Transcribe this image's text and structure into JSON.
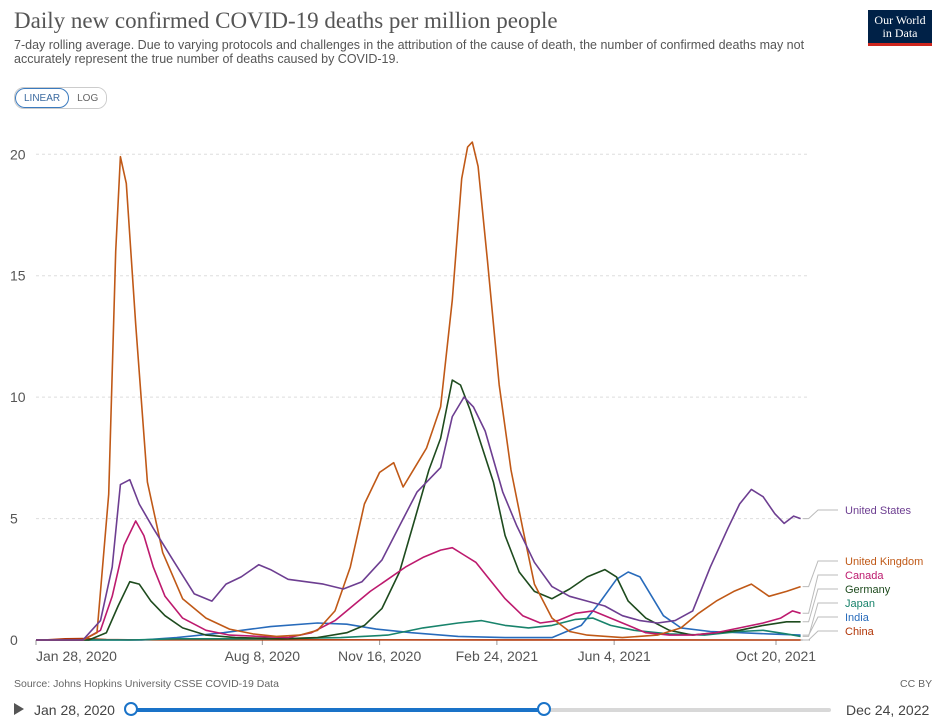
{
  "header": {
    "title": "Daily new confirmed COVID-19 deaths per million people",
    "subtitle": "7-day rolling average. Due to varying protocols and challenges in the attribution of the cause of death, the number of confirmed deaths may not accurately represent the true number of deaths caused by COVID-19.",
    "logo_line1": "Our World",
    "logo_line2": "in Data"
  },
  "toggle": {
    "linear_label": "LINEAR",
    "log_label": "LOG",
    "selected": "LINEAR"
  },
  "footer": {
    "source": "Source: Johns Hopkins University CSSE COVID-19 Data",
    "license": "CC BY"
  },
  "timeline": {
    "start_label": "Jan 28, 2020",
    "end_label": "Dec 24, 2022",
    "selection_end_fraction": 0.59
  },
  "chart_data": {
    "type": "line",
    "ylim": [
      0,
      21
    ],
    "yticks": [
      0,
      5,
      10,
      15,
      20
    ],
    "xlim": [
      0,
      660
    ],
    "xticks": [
      {
        "day": 0,
        "label": "Jan 28, 2020"
      },
      {
        "day": 193,
        "label": "Aug 8, 2020"
      },
      {
        "day": 293,
        "label": "Nov 16, 2020"
      },
      {
        "day": 393,
        "label": "Feb 24, 2021"
      },
      {
        "day": 493,
        "label": "Jun 4, 2021"
      },
      {
        "day": 631,
        "label": "Oct 20, 2021"
      }
    ],
    "grid": true,
    "legend": "right, labels at line ends",
    "series": [
      {
        "name": "United States",
        "color": "#6d3e91",
        "points": [
          [
            0,
            0
          ],
          [
            40,
            0
          ],
          [
            55,
            0.8
          ],
          [
            65,
            3
          ],
          [
            72,
            6.4
          ],
          [
            80,
            6.6
          ],
          [
            88,
            5.6
          ],
          [
            100,
            4.6
          ],
          [
            118,
            3.2
          ],
          [
            135,
            1.9
          ],
          [
            150,
            1.6
          ],
          [
            162,
            2.3
          ],
          [
            175,
            2.6
          ],
          [
            190,
            3.1
          ],
          [
            200,
            2.9
          ],
          [
            215,
            2.5
          ],
          [
            230,
            2.4
          ],
          [
            245,
            2.3
          ],
          [
            262,
            2.1
          ],
          [
            278,
            2.4
          ],
          [
            295,
            3.3
          ],
          [
            310,
            4.7
          ],
          [
            325,
            6.1
          ],
          [
            345,
            7.1
          ],
          [
            355,
            9.2
          ],
          [
            365,
            10
          ],
          [
            373,
            9.6
          ],
          [
            383,
            8.6
          ],
          [
            398,
            6.1
          ],
          [
            410,
            4.7
          ],
          [
            425,
            3.2
          ],
          [
            440,
            2.2
          ],
          [
            455,
            1.8
          ],
          [
            470,
            1.6
          ],
          [
            485,
            1.4
          ],
          [
            500,
            1.0
          ],
          [
            515,
            0.8
          ],
          [
            530,
            0.7
          ],
          [
            545,
            0.8
          ],
          [
            560,
            1.2
          ],
          [
            575,
            3.0
          ],
          [
            590,
            4.6
          ],
          [
            600,
            5.6
          ],
          [
            610,
            6.2
          ],
          [
            620,
            5.9
          ],
          [
            630,
            5.2
          ],
          [
            638,
            4.8
          ],
          [
            646,
            5.1
          ],
          [
            652,
            5.0
          ]
        ]
      },
      {
        "name": "United Kingdom",
        "color": "#c05917",
        "points": [
          [
            0,
            0
          ],
          [
            40,
            0
          ],
          [
            52,
            0.3
          ],
          [
            62,
            6
          ],
          [
            68,
            16
          ],
          [
            72,
            19.9
          ],
          [
            77,
            18.8
          ],
          [
            85,
            13
          ],
          [
            95,
            6.5
          ],
          [
            108,
            3.6
          ],
          [
            125,
            1.7
          ],
          [
            145,
            0.9
          ],
          [
            165,
            0.45
          ],
          [
            185,
            0.25
          ],
          [
            205,
            0.15
          ],
          [
            225,
            0.2
          ],
          [
            240,
            0.4
          ],
          [
            255,
            1.2
          ],
          [
            268,
            3.0
          ],
          [
            280,
            5.6
          ],
          [
            293,
            6.9
          ],
          [
            305,
            7.3
          ],
          [
            313,
            6.3
          ],
          [
            323,
            7.1
          ],
          [
            333,
            7.9
          ],
          [
            345,
            9.6
          ],
          [
            355,
            14
          ],
          [
            363,
            19
          ],
          [
            368,
            20.3
          ],
          [
            372,
            20.5
          ],
          [
            377,
            19.5
          ],
          [
            385,
            15.6
          ],
          [
            395,
            10.5
          ],
          [
            405,
            7.0
          ],
          [
            415,
            4.6
          ],
          [
            425,
            2.3
          ],
          [
            440,
            0.9
          ],
          [
            455,
            0.35
          ],
          [
            470,
            0.2
          ],
          [
            500,
            0.1
          ],
          [
            530,
            0.2
          ],
          [
            550,
            0.5
          ],
          [
            565,
            1.1
          ],
          [
            580,
            1.6
          ],
          [
            595,
            2.0
          ],
          [
            610,
            2.3
          ],
          [
            625,
            1.8
          ],
          [
            640,
            2.0
          ],
          [
            652,
            2.2
          ]
        ]
      },
      {
        "name": "Canada",
        "color": "#bd1a6e",
        "points": [
          [
            0,
            0
          ],
          [
            40,
            0
          ],
          [
            55,
            0.4
          ],
          [
            65,
            1.8
          ],
          [
            75,
            3.9
          ],
          [
            85,
            4.9
          ],
          [
            92,
            4.3
          ],
          [
            100,
            3.0
          ],
          [
            110,
            1.8
          ],
          [
            125,
            0.9
          ],
          [
            145,
            0.4
          ],
          [
            165,
            0.2
          ],
          [
            190,
            0.15
          ],
          [
            215,
            0.1
          ],
          [
            235,
            0.3
          ],
          [
            255,
            0.8
          ],
          [
            270,
            1.4
          ],
          [
            285,
            2.0
          ],
          [
            300,
            2.5
          ],
          [
            315,
            3.0
          ],
          [
            330,
            3.4
          ],
          [
            345,
            3.7
          ],
          [
            355,
            3.8
          ],
          [
            365,
            3.5
          ],
          [
            375,
            3.2
          ],
          [
            385,
            2.6
          ],
          [
            400,
            1.7
          ],
          [
            415,
            1.0
          ],
          [
            430,
            0.7
          ],
          [
            445,
            0.8
          ],
          [
            460,
            1.1
          ],
          [
            475,
            1.2
          ],
          [
            490,
            0.9
          ],
          [
            505,
            0.6
          ],
          [
            520,
            0.3
          ],
          [
            540,
            0.2
          ],
          [
            560,
            0.2
          ],
          [
            580,
            0.3
          ],
          [
            600,
            0.5
          ],
          [
            620,
            0.7
          ],
          [
            635,
            0.9
          ],
          [
            645,
            1.2
          ],
          [
            652,
            1.1
          ]
        ]
      },
      {
        "name": "Germany",
        "color": "#1e4b1e",
        "points": [
          [
            0,
            0
          ],
          [
            45,
            0
          ],
          [
            60,
            0.3
          ],
          [
            70,
            1.4
          ],
          [
            80,
            2.4
          ],
          [
            88,
            2.3
          ],
          [
            98,
            1.6
          ],
          [
            110,
            1.0
          ],
          [
            125,
            0.5
          ],
          [
            145,
            0.2
          ],
          [
            170,
            0.1
          ],
          [
            210,
            0.05
          ],
          [
            240,
            0.1
          ],
          [
            265,
            0.3
          ],
          [
            280,
            0.6
          ],
          [
            295,
            1.3
          ],
          [
            310,
            2.8
          ],
          [
            322,
            4.8
          ],
          [
            335,
            7.0
          ],
          [
            345,
            8.3
          ],
          [
            355,
            10.7
          ],
          [
            362,
            10.5
          ],
          [
            370,
            9.5
          ],
          [
            380,
            8.0
          ],
          [
            390,
            6.5
          ],
          [
            400,
            4.3
          ],
          [
            412,
            2.8
          ],
          [
            425,
            2.0
          ],
          [
            440,
            1.7
          ],
          [
            455,
            2.1
          ],
          [
            470,
            2.6
          ],
          [
            485,
            2.9
          ],
          [
            495,
            2.6
          ],
          [
            505,
            1.6
          ],
          [
            520,
            0.9
          ],
          [
            540,
            0.4
          ],
          [
            560,
            0.2
          ],
          [
            580,
            0.3
          ],
          [
            600,
            0.4
          ],
          [
            620,
            0.6
          ],
          [
            640,
            0.75
          ],
          [
            652,
            0.75
          ]
        ]
      },
      {
        "name": "Japan",
        "color": "#18836b",
        "points": [
          [
            0,
            0
          ],
          [
            80,
            0
          ],
          [
            120,
            0.05
          ],
          [
            200,
            0.05
          ],
          [
            260,
            0.1
          ],
          [
            300,
            0.2
          ],
          [
            330,
            0.5
          ],
          [
            360,
            0.7
          ],
          [
            380,
            0.8
          ],
          [
            400,
            0.6
          ],
          [
            420,
            0.5
          ],
          [
            440,
            0.6
          ],
          [
            460,
            0.85
          ],
          [
            475,
            0.9
          ],
          [
            490,
            0.6
          ],
          [
            510,
            0.4
          ],
          [
            540,
            0.25
          ],
          [
            570,
            0.2
          ],
          [
            600,
            0.35
          ],
          [
            620,
            0.4
          ],
          [
            640,
            0.25
          ],
          [
            652,
            0.15
          ]
        ]
      },
      {
        "name": "India",
        "color": "#286bbb",
        "points": [
          [
            0,
            0
          ],
          [
            90,
            0
          ],
          [
            120,
            0.1
          ],
          [
            160,
            0.3
          ],
          [
            200,
            0.55
          ],
          [
            240,
            0.7
          ],
          [
            265,
            0.65
          ],
          [
            290,
            0.45
          ],
          [
            320,
            0.3
          ],
          [
            360,
            0.15
          ],
          [
            400,
            0.1
          ],
          [
            440,
            0.1
          ],
          [
            465,
            0.6
          ],
          [
            480,
            1.5
          ],
          [
            495,
            2.5
          ],
          [
            505,
            2.8
          ],
          [
            515,
            2.6
          ],
          [
            525,
            1.8
          ],
          [
            535,
            1.0
          ],
          [
            550,
            0.5
          ],
          [
            575,
            0.35
          ],
          [
            600,
            0.3
          ],
          [
            625,
            0.25
          ],
          [
            652,
            0.2
          ]
        ]
      },
      {
        "name": "China",
        "color": "#b13507",
        "points": [
          [
            0,
            0
          ],
          [
            10,
            0.01
          ],
          [
            25,
            0.05
          ],
          [
            40,
            0.06
          ],
          [
            60,
            0.02
          ],
          [
            80,
            0.01
          ],
          [
            652,
            0.0
          ]
        ]
      }
    ]
  }
}
